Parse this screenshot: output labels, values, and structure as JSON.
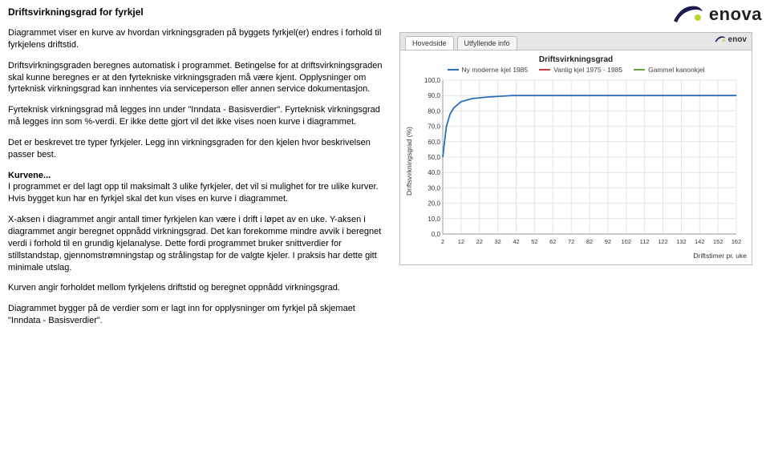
{
  "logo_text": "enova",
  "title": "Driftsvirkningsgrad for fyrkjel",
  "paragraphs": {
    "p1": "Diagrammet viser en kurve av hvordan virkningsgraden på byggets fyrkjel(er) endres i forhold til fyrkjelens driftstid.",
    "p2": "Driftsvirkningsgraden beregnes automatisk i programmet. Betingelse for at driftsvirkningsgraden skal kunne beregnes er at den fyrtekniske virkningsgraden må være kjent. Opplysninger om fyrteknisk virkningsgrad kan innhentes via serviceperson eller annen service dokumentasjon.",
    "p3": "Fyrteknisk virkningsgrad må legges inn under \"Inndata - Basisverdier\". Fyrteknisk virkningsgrad må legges inn som %-verdi. Er ikke dette gjort vil det ikke vises noen kurve i diagrammet.",
    "p4": "Det er beskrevet tre typer fyrkjeler. Legg inn virkningsgraden for den kjelen hvor beskrivelsen passer best.",
    "p5_head": "Kurvene...",
    "p5": "I programmet er del lagt opp til maksimalt 3 ulike fyrkjeler, det vil si mulighet for tre ulike kurver. Hvis bygget kun har en fyrkjel skal det kun vises en kurve i diagrammet.",
    "p6": "X-aksen i diagrammet angir antall timer fyrkjelen kan være i drift i løpet av en uke.  Y-aksen i diagrammet angir beregnet oppnådd virkningsgrad.  Det kan forekomme mindre avvik i beregnet verdi i forhold til en grundig kjelanalyse. Dette fordi programmet bruker snittverdier for  stillstandstap, gjennomstrømningstap og strålingstap for de valgte kjeler.  I praksis har dette gitt minimale utslag.",
    "p7": "Kurven angir forholdet mellom fyrkjelens driftstid og beregnet oppnådd virkningsgrad.",
    "p8": "Diagrammet bygger på de verdier som er lagt inn for opplysninger om fyrkjel på skjemaet \"Inndata - Basisverdier\"."
  },
  "app": {
    "tabs": {
      "t1": "Hovedside",
      "t2": "Utfyllende info"
    },
    "mini_logo": "enov",
    "chart_title": "Driftsvirkningsgrad",
    "legend": {
      "s1": {
        "label": "Ny moderne kjel 1985",
        "color": "#2a6fb5"
      },
      "s2": {
        "label": "Vanlig kjel 1975 - 1985",
        "color": "#c04040"
      },
      "s3": {
        "label": "Gammel kanonkjel",
        "color": "#6aa043"
      }
    },
    "ylabel": "Driftsvirkningsgrad (%)",
    "xlabel": "Driftstimer pr. uke",
    "yticks": [
      "0,0",
      "10,0",
      "20,0",
      "30,0",
      "40,0",
      "50,0",
      "60,0",
      "70,0",
      "80,0",
      "90,0",
      "100,0"
    ],
    "xticks": [
      "2",
      "12",
      "22",
      "32",
      "42",
      "52",
      "62",
      "72",
      "82",
      "92",
      "102",
      "112",
      "122",
      "132",
      "142",
      "152",
      "162"
    ],
    "series1": {
      "color": "#2a6fb5",
      "points": [
        [
          2,
          50
        ],
        [
          4,
          70
        ],
        [
          6,
          78
        ],
        [
          8,
          82
        ],
        [
          12,
          86
        ],
        [
          18,
          88
        ],
        [
          26,
          89
        ],
        [
          40,
          90
        ],
        [
          60,
          90
        ],
        [
          90,
          90
        ],
        [
          120,
          90
        ],
        [
          162,
          90
        ]
      ]
    },
    "grid_color": "#e3e3e3",
    "axis_color": "#999",
    "bg": "#ffffff",
    "xmin": 2,
    "xmax": 162,
    "ymin": 0,
    "ymax": 100
  }
}
